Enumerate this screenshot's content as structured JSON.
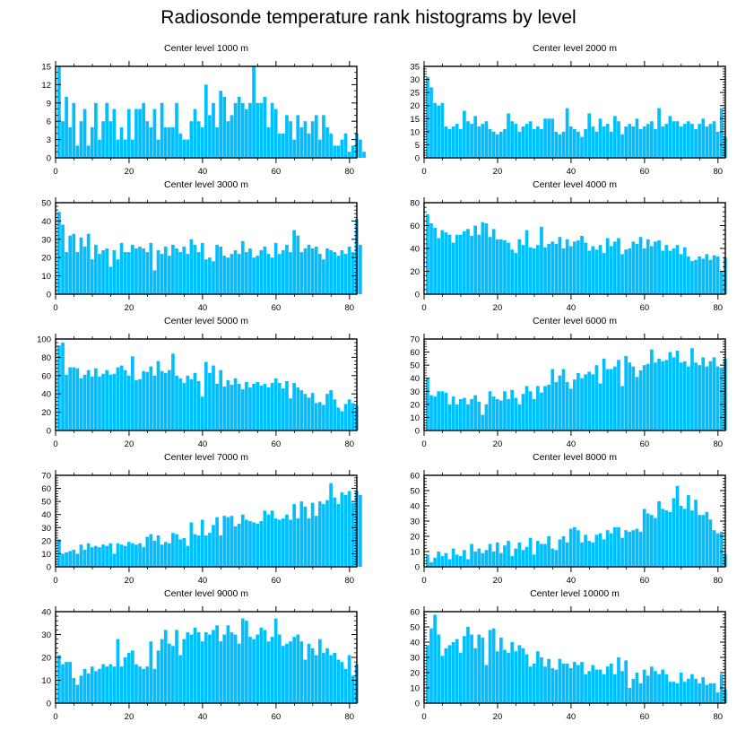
{
  "figure": {
    "title": "Radiosonde temperature rank histograms by level",
    "bar_color": "#00bfff",
    "axis_color": "#000000"
  },
  "chart_data": [
    {
      "type": "bar",
      "title": "Center level 1000 m",
      "xlabel": "",
      "ylabel": "",
      "xlim": [
        0,
        82
      ],
      "ylim": [
        0,
        15
      ],
      "xticks": [
        0,
        20,
        40,
        60,
        80
      ],
      "yticks": [
        0,
        3,
        6,
        9,
        12,
        15
      ],
      "categories_start": 1,
      "values": [
        15,
        6,
        10,
        5,
        9,
        2,
        6,
        8,
        2,
        5,
        9,
        3,
        6,
        9,
        6,
        8,
        3,
        5,
        3,
        8,
        3,
        8,
        8,
        9,
        6,
        5,
        8,
        3,
        9,
        5,
        5,
        5,
        9,
        4,
        3,
        3,
        6,
        8,
        6,
        5,
        12,
        7,
        9,
        5,
        11,
        10,
        6,
        7,
        9,
        10,
        9,
        8,
        9,
        15,
        9,
        9,
        10,
        5,
        9,
        8,
        4,
        4,
        7,
        6,
        3,
        7,
        5,
        6,
        4,
        6,
        7,
        3,
        7,
        5,
        4,
        2,
        2,
        3,
        4,
        1,
        2,
        4,
        3,
        1
      ]
    },
    {
      "type": "bar",
      "title": "Center level 2000 m",
      "xlabel": "",
      "ylabel": "",
      "xlim": [
        0,
        82
      ],
      "ylim": [
        0,
        35
      ],
      "xticks": [
        0,
        20,
        40,
        60,
        80
      ],
      "yticks": [
        0,
        5,
        10,
        15,
        20,
        25,
        30,
        35
      ],
      "categories_start": 1,
      "values": [
        31,
        27,
        21,
        20,
        21,
        12,
        11,
        12,
        13,
        11,
        18,
        14,
        13,
        16,
        12,
        13,
        14,
        11,
        10,
        9,
        10,
        11,
        17,
        14,
        13,
        10,
        12,
        13,
        14,
        11,
        12,
        11,
        15,
        15,
        15,
        10,
        9,
        10,
        19,
        12,
        11,
        10,
        8,
        11,
        17,
        12,
        10,
        15,
        12,
        13,
        10,
        16,
        14,
        9,
        12,
        13,
        12,
        15,
        11,
        12,
        13,
        14,
        11,
        19,
        12,
        13,
        16,
        14,
        14,
        12,
        13,
        14,
        13,
        11,
        13,
        15,
        12,
        13,
        14,
        10,
        19,
        8
      ]
    },
    {
      "type": "bar",
      "title": "Center level 3000 m",
      "xlabel": "",
      "ylabel": "",
      "xlim": [
        0,
        82
      ],
      "ylim": [
        0,
        50
      ],
      "xticks": [
        0,
        20,
        40,
        60,
        80
      ],
      "yticks": [
        0,
        10,
        20,
        30,
        40,
        50
      ],
      "categories_start": 1,
      "values": [
        45,
        38,
        23,
        32,
        33,
        23,
        31,
        26,
        33,
        19,
        27,
        22,
        24,
        25,
        15,
        24,
        19,
        28,
        23,
        23,
        27,
        25,
        26,
        25,
        23,
        28,
        13,
        24,
        22,
        26,
        21,
        27,
        25,
        23,
        26,
        22,
        30,
        27,
        23,
        28,
        19,
        20,
        18,
        27,
        26,
        21,
        20,
        22,
        24,
        22,
        29,
        23,
        25,
        20,
        21,
        24,
        26,
        22,
        20,
        28,
        22,
        24,
        27,
        23,
        35,
        32,
        23,
        25,
        27,
        25,
        26,
        22,
        19,
        25,
        24,
        23,
        21,
        24,
        22,
        26,
        23,
        41,
        27
      ]
    },
    {
      "type": "bar",
      "title": "Center level 4000 m",
      "xlabel": "",
      "ylabel": "",
      "xlim": [
        0,
        82
      ],
      "ylim": [
        0,
        80
      ],
      "xticks": [
        0,
        20,
        40,
        60,
        80
      ],
      "yticks": [
        0,
        20,
        40,
        60,
        80
      ],
      "categories_start": 1,
      "values": [
        70,
        62,
        58,
        49,
        56,
        54,
        52,
        45,
        52,
        52,
        55,
        57,
        51,
        60,
        52,
        63,
        62,
        50,
        57,
        48,
        48,
        47,
        45,
        39,
        36,
        48,
        43,
        56,
        41,
        40,
        43,
        59,
        41,
        44,
        46,
        44,
        50,
        40,
        48,
        42,
        46,
        47,
        51,
        45,
        38,
        42,
        39,
        43,
        36,
        49,
        42,
        46,
        49,
        35,
        39,
        40,
        46,
        44,
        50,
        40,
        48,
        42,
        46,
        47,
        38,
        43,
        38,
        40,
        43,
        35,
        41,
        33,
        29,
        30,
        33,
        31,
        35,
        30,
        34,
        33,
        20,
        32
      ]
    },
    {
      "type": "bar",
      "title": "Center level 5000 m",
      "xlabel": "",
      "ylabel": "",
      "xlim": [
        0,
        82
      ],
      "ylim": [
        0,
        100
      ],
      "xticks": [
        0,
        20,
        40,
        60,
        80
      ],
      "yticks": [
        0,
        20,
        40,
        60,
        80,
        100
      ],
      "categories_start": 1,
      "values": [
        93,
        96,
        61,
        69,
        69,
        68,
        57,
        61,
        66,
        59,
        68,
        59,
        62,
        66,
        61,
        62,
        69,
        71,
        66,
        60,
        81,
        55,
        56,
        65,
        64,
        70,
        60,
        76,
        65,
        63,
        66,
        84,
        60,
        57,
        52,
        60,
        56,
        63,
        54,
        37,
        75,
        63,
        71,
        51,
        66,
        48,
        55,
        50,
        57,
        51,
        45,
        53,
        47,
        51,
        53,
        49,
        51,
        47,
        52,
        57,
        52,
        46,
        54,
        35,
        52,
        47,
        44,
        40,
        36,
        41,
        30,
        31,
        28,
        40,
        44,
        34,
        25,
        21,
        29,
        34,
        30,
        27
      ]
    },
    {
      "type": "bar",
      "title": "Center level 6000 m",
      "xlabel": "",
      "ylabel": "",
      "xlim": [
        0,
        82
      ],
      "ylim": [
        0,
        70
      ],
      "xticks": [
        0,
        20,
        40,
        60,
        80
      ],
      "yticks": [
        0,
        10,
        20,
        30,
        40,
        50,
        60,
        70
      ],
      "categories_start": 1,
      "values": [
        40,
        27,
        26,
        30,
        30,
        29,
        20,
        26,
        20,
        24,
        25,
        20,
        24,
        27,
        22,
        12,
        20,
        30,
        26,
        24,
        23,
        30,
        24,
        31,
        25,
        20,
        28,
        34,
        30,
        24,
        34,
        29,
        34,
        35,
        47,
        37,
        42,
        47,
        37,
        32,
        39,
        44,
        40,
        43,
        45,
        43,
        50,
        36,
        55,
        47,
        47,
        49,
        54,
        34,
        57,
        52,
        49,
        41,
        46,
        50,
        51,
        62,
        52,
        55,
        53,
        54,
        60,
        56,
        61,
        52,
        53,
        49,
        63,
        52,
        50,
        56,
        49,
        53,
        56,
        49,
        48,
        55
      ]
    },
    {
      "type": "bar",
      "title": "Center level 7000 m",
      "xlabel": "",
      "ylabel": "",
      "xlim": [
        0,
        82
      ],
      "ylim": [
        0,
        70
      ],
      "xticks": [
        0,
        20,
        40,
        60,
        80
      ],
      "yticks": [
        0,
        10,
        20,
        30,
        40,
        50,
        60,
        70
      ],
      "categories_start": 1,
      "values": [
        21,
        10,
        11,
        12,
        13,
        10,
        17,
        13,
        18,
        15,
        16,
        15,
        17,
        16,
        18,
        10,
        18,
        17,
        16,
        19,
        18,
        17,
        18,
        15,
        23,
        25,
        20,
        24,
        17,
        19,
        18,
        26,
        25,
        21,
        22,
        16,
        34,
        25,
        24,
        36,
        24,
        26,
        32,
        38,
        24,
        39,
        38,
        39,
        31,
        33,
        40,
        36,
        35,
        34,
        33,
        35,
        43,
        40,
        43,
        37,
        36,
        37,
        40,
        36,
        48,
        37,
        50,
        46,
        37,
        49,
        39,
        50,
        48,
        51,
        64,
        53,
        48,
        57,
        55,
        58,
        49,
        58,
        55
      ]
    },
    {
      "type": "bar",
      "title": "Center level 8000 m",
      "xlabel": "",
      "ylabel": "",
      "xlim": [
        0,
        82
      ],
      "ylim": [
        0,
        60
      ],
      "xticks": [
        0,
        20,
        40,
        60,
        80
      ],
      "yticks": [
        0,
        10,
        20,
        30,
        40,
        50,
        60
      ],
      "categories_start": 1,
      "values": [
        8,
        3,
        6,
        10,
        7,
        9,
        5,
        12,
        8,
        7,
        11,
        5,
        15,
        10,
        12,
        9,
        11,
        15,
        10,
        16,
        9,
        14,
        17,
        7,
        12,
        16,
        11,
        13,
        19,
        8,
        17,
        15,
        15,
        20,
        12,
        11,
        18,
        20,
        16,
        25,
        26,
        24,
        16,
        21,
        17,
        16,
        21,
        22,
        18,
        24,
        22,
        26,
        26,
        19,
        24,
        23,
        24,
        25,
        23,
        38,
        35,
        34,
        32,
        43,
        38,
        37,
        36,
        45,
        53,
        40,
        38,
        47,
        37,
        44,
        34,
        34,
        36,
        31,
        24,
        22,
        23,
        8
      ]
    },
    {
      "type": "bar",
      "title": "Center level 9000 m",
      "xlabel": "",
      "ylabel": "",
      "xlim": [
        0,
        82
      ],
      "ylim": [
        0,
        40
      ],
      "xticks": [
        0,
        20,
        40,
        60,
        80
      ],
      "yticks": [
        0,
        10,
        20,
        30,
        40
      ],
      "categories_start": 1,
      "values": [
        21,
        17,
        18,
        18,
        11,
        8,
        12,
        15,
        13,
        16,
        14,
        15,
        17,
        16,
        17,
        16,
        28,
        16,
        20,
        22,
        23,
        17,
        16,
        15,
        16,
        27,
        15,
        23,
        28,
        32,
        26,
        25,
        32,
        21,
        28,
        31,
        30,
        33,
        31,
        27,
        31,
        30,
        32,
        34,
        27,
        30,
        34,
        31,
        30,
        26,
        37,
        36,
        29,
        28,
        30,
        33,
        32,
        27,
        29,
        37,
        30,
        25,
        26,
        27,
        29,
        30,
        27,
        19,
        26,
        24,
        21,
        28,
        22,
        24,
        21,
        22,
        19,
        18,
        15,
        21,
        12,
        17
      ]
    },
    {
      "type": "bar",
      "title": "Center level 10000 m",
      "xlabel": "",
      "ylabel": "",
      "xlim": [
        0,
        82
      ],
      "ylim": [
        0,
        60
      ],
      "xticks": [
        0,
        20,
        40,
        60,
        80
      ],
      "yticks": [
        0,
        10,
        20,
        30,
        40,
        50,
        60
      ],
      "categories_start": 1,
      "values": [
        38,
        49,
        58,
        45,
        31,
        36,
        38,
        40,
        42,
        33,
        44,
        50,
        45,
        36,
        45,
        43,
        25,
        48,
        49,
        34,
        43,
        35,
        33,
        40,
        34,
        38,
        36,
        32,
        24,
        26,
        34,
        30,
        24,
        29,
        23,
        22,
        29,
        26,
        26,
        23,
        27,
        25,
        27,
        19,
        21,
        25,
        22,
        22,
        19,
        24,
        26,
        19,
        30,
        21,
        28,
        10,
        16,
        20,
        13,
        22,
        18,
        24,
        21,
        19,
        22,
        19,
        14,
        14,
        13,
        20,
        14,
        16,
        19,
        16,
        13,
        17,
        12,
        13,
        13,
        7,
        19,
        9
      ]
    }
  ]
}
